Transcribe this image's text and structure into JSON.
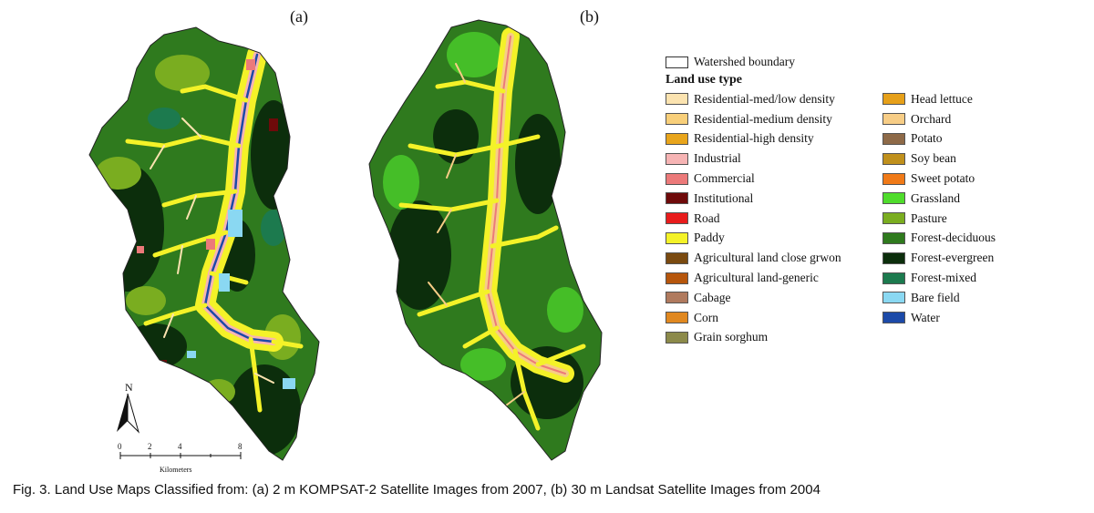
{
  "panels": [
    {
      "label": "(a)"
    },
    {
      "label": "(b)"
    }
  ],
  "legend": {
    "boundary_label": "Watershed boundary",
    "title": "Land use type",
    "left_items": [
      {
        "label": "Residential-med/low density",
        "color": "#fbe3b0"
      },
      {
        "label": "Residential-medium density",
        "color": "#f8cf7a"
      },
      {
        "label": "Residential-high density",
        "color": "#e8a51c"
      },
      {
        "label": "Industrial",
        "color": "#f6b4b4"
      },
      {
        "label": "Commercial",
        "color": "#ec7a7a"
      },
      {
        "label": "Institutional",
        "color": "#6e0a0a"
      },
      {
        "label": "Road",
        "color": "#e81c1c"
      },
      {
        "label": "Paddy",
        "color": "#f4f228"
      },
      {
        "label": "Agricultural land close grwon",
        "color": "#7a4a10"
      },
      {
        "label": "Agricultural land-generic",
        "color": "#b6560c"
      },
      {
        "label": "Cabage",
        "color": "#b07a5e"
      },
      {
        "label": "Corn",
        "color": "#e08820"
      },
      {
        "label": "Grain sorghum",
        "color": "#8c8a4a"
      }
    ],
    "right_items": [
      {
        "label": "Head lettuce",
        "color": "#e6a01a"
      },
      {
        "label": "Orchard",
        "color": "#f7cd86"
      },
      {
        "label": "Potato",
        "color": "#8e6a48"
      },
      {
        "label": "Soy bean",
        "color": "#c0901c"
      },
      {
        "label": "Sweet potato",
        "color": "#f07a18"
      },
      {
        "label": "Grassland",
        "color": "#4fdc2c"
      },
      {
        "label": "Pasture",
        "color": "#7aad20"
      },
      {
        "label": "Forest-deciduous",
        "color": "#2f7a1e"
      },
      {
        "label": "Forest-evergreen",
        "color": "#0c2e0c"
      },
      {
        "label": "Forest-mixed",
        "color": "#1c7a4e"
      },
      {
        "label": "Bare field",
        "color": "#8ad8f2"
      },
      {
        "label": "Water",
        "color": "#1c4aa8"
      }
    ]
  },
  "north_arrow": {
    "label": "N"
  },
  "scale_bar": {
    "ticks": [
      "0",
      "2",
      "4",
      "8"
    ],
    "unit": "Kilometers"
  },
  "caption": "Fig. 3. Land Use Maps Classified from: (a) 2 m KOMPSAT-2 Satellite Images from 2007, (b) 30 m Landsat Satellite Images from 2004"
}
